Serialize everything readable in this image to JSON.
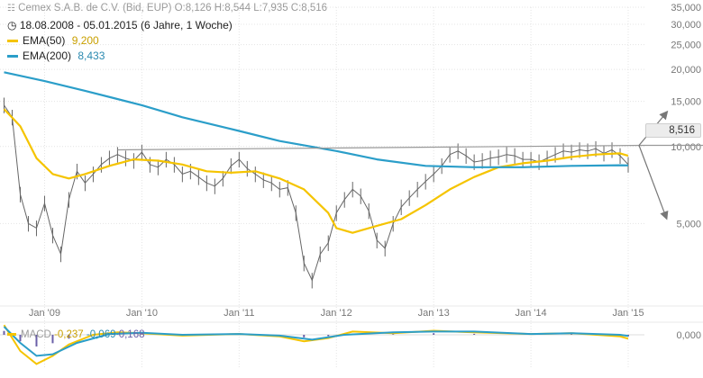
{
  "header": {
    "title": "Cemex S.A.B. de C.V. (Bid, EUP)",
    "quote": {
      "open_label": "O:",
      "open": "8,126",
      "high_label": "H:",
      "high": "8,544",
      "low_label": "L:",
      "low": "7,935",
      "close_label": "C:",
      "close": "8,516"
    },
    "period": "18.08.2008 - 05.01.2015 (6 Jahre, 1 Woche)",
    "ema50_label": "EMA(50)",
    "ema50_value": "9,200",
    "ema200_label": "EMA(200)",
    "ema200_value": "8,433"
  },
  "macd_legend": {
    "label": "MACD",
    "value1": "-0,237",
    "value2": "-0,069",
    "value3": "0,168"
  },
  "price_badge": "8,516",
  "colors": {
    "price": "#666666",
    "ema50": "#f5c400",
    "ema200": "#2b9ec9",
    "trendline": "#999999",
    "arrow": "#777777",
    "grid": "#e4e4e4",
    "macd_hist": "#6a5fa8"
  },
  "icons": {
    "clock": "clock-icon",
    "chart_logo": "chart-logo-icon"
  },
  "chart_data": {
    "type": "line",
    "scale": "log",
    "ylim": [
      2.5,
      35
    ],
    "y_ticks": [
      {
        "value": 35,
        "label": "35,000"
      },
      {
        "value": 30,
        "label": "30,000"
      },
      {
        "value": 25,
        "label": "25,000"
      },
      {
        "value": 20,
        "label": "20,000"
      },
      {
        "value": 15,
        "label": "15,000"
      },
      {
        "value": 10,
        "label": "10,000"
      },
      {
        "value": 5,
        "label": "5,000"
      }
    ],
    "x_ticks": [
      {
        "value": "2009-01",
        "label": "Jan '09"
      },
      {
        "value": "2010-01",
        "label": "Jan '10"
      },
      {
        "value": "2011-01",
        "label": "Jan '11"
      },
      {
        "value": "2012-01",
        "label": "Jan '12"
      },
      {
        "value": "2013-01",
        "label": "Jan '13"
      },
      {
        "value": "2014-01",
        "label": "Jan '14"
      },
      {
        "value": "2015-01",
        "label": "Jan '15"
      }
    ],
    "xlim": [
      "2008-08",
      "2015-03"
    ],
    "grid": true,
    "series": [
      {
        "key": "price",
        "x": [
          "2008-08",
          "2008-09",
          "2008-10",
          "2008-11",
          "2008-12",
          "2009-01",
          "2009-02",
          "2009-03",
          "2009-04",
          "2009-05",
          "2009-06",
          "2009-07",
          "2009-08",
          "2009-09",
          "2009-10",
          "2009-11",
          "2009-12",
          "2010-01",
          "2010-02",
          "2010-03",
          "2010-04",
          "2010-05",
          "2010-06",
          "2010-07",
          "2010-08",
          "2010-09",
          "2010-10",
          "2010-11",
          "2010-12",
          "2011-01",
          "2011-02",
          "2011-03",
          "2011-04",
          "2011-05",
          "2011-06",
          "2011-07",
          "2011-08",
          "2011-09",
          "2011-10",
          "2011-11",
          "2011-12",
          "2012-01",
          "2012-02",
          "2012-03",
          "2012-04",
          "2012-05",
          "2012-06",
          "2012-07",
          "2012-08",
          "2012-09",
          "2012-10",
          "2012-11",
          "2012-12",
          "2013-01",
          "2013-02",
          "2013-03",
          "2013-04",
          "2013-05",
          "2013-06",
          "2013-07",
          "2013-08",
          "2013-09",
          "2013-10",
          "2013-11",
          "2013-12",
          "2014-01",
          "2014-02",
          "2014-03",
          "2014-04",
          "2014-05",
          "2014-06",
          "2014-07",
          "2014-08",
          "2014-09",
          "2014-10",
          "2014-11",
          "2014-12",
          "2015-01"
        ],
        "values": [
          14.5,
          13.0,
          6.5,
          5.0,
          4.8,
          6.0,
          4.5,
          3.8,
          6.2,
          8.0,
          7.2,
          7.8,
          8.5,
          9.0,
          9.3,
          9.0,
          8.8,
          9.5,
          8.5,
          8.3,
          8.9,
          8.5,
          7.8,
          8.0,
          7.6,
          7.2,
          7.0,
          7.5,
          8.4,
          8.9,
          8.2,
          7.8,
          7.4,
          7.2,
          6.8,
          6.9,
          5.5,
          3.5,
          3.0,
          3.8,
          4.2,
          5.5,
          6.2,
          6.8,
          6.4,
          5.6,
          4.3,
          4.0,
          5.0,
          5.8,
          6.3,
          6.8,
          7.3,
          7.8,
          8.4,
          9.3,
          9.6,
          9.2,
          8.7,
          8.8,
          9.0,
          9.1,
          9.3,
          9.2,
          8.9,
          8.9,
          8.7,
          9.0,
          9.3,
          9.6,
          9.5,
          9.7,
          9.6,
          9.8,
          9.4,
          9.7,
          9.2,
          8.5
        ]
      },
      {
        "key": "ema50",
        "name": "EMA(50)",
        "x": [
          "2008-08",
          "2008-10",
          "2008-12",
          "2009-02",
          "2009-04",
          "2009-06",
          "2009-09",
          "2009-12",
          "2010-03",
          "2010-06",
          "2010-09",
          "2010-12",
          "2011-03",
          "2011-06",
          "2011-09",
          "2011-12",
          "2012-01",
          "2012-03",
          "2012-06",
          "2012-09",
          "2012-12",
          "2013-03",
          "2013-06",
          "2013-09",
          "2013-12",
          "2014-03",
          "2014-06",
          "2014-09",
          "2014-12",
          "2015-01"
        ],
        "values": [
          14.0,
          12.0,
          9.0,
          7.8,
          7.5,
          7.8,
          8.4,
          8.9,
          8.8,
          8.5,
          8.0,
          7.9,
          8.0,
          7.5,
          6.8,
          5.5,
          4.8,
          4.6,
          4.9,
          5.2,
          5.9,
          6.8,
          7.6,
          8.3,
          8.6,
          8.8,
          9.1,
          9.3,
          9.4,
          9.2
        ]
      },
      {
        "key": "ema200",
        "name": "EMA(200)",
        "x": [
          "2008-08",
          "2009-01",
          "2009-06",
          "2010-01",
          "2010-06",
          "2011-01",
          "2011-06",
          "2012-01",
          "2012-06",
          "2012-12",
          "2013-06",
          "2013-12",
          "2014-06",
          "2014-12",
          "2015-01"
        ],
        "values": [
          19.5,
          18.0,
          16.5,
          14.5,
          13.0,
          11.5,
          10.5,
          9.6,
          8.9,
          8.4,
          8.3,
          8.3,
          8.4,
          8.45,
          8.43
        ]
      }
    ],
    "trendline": {
      "x": [
        "2009-10",
        "2015-03"
      ],
      "values": [
        9.7,
        10.1
      ]
    },
    "arrows": [
      {
        "direction": "up",
        "from": {
          "x": "2015-01",
          "y": 10.1
        },
        "to": {
          "x": "2015-05",
          "y": 13.5
        }
      },
      {
        "direction": "down",
        "from": {
          "x": "2015-01",
          "y": 10.1
        },
        "to": {
          "x": "2015-05",
          "y": 5.3
        }
      }
    ],
    "macd_panel": {
      "type": "line",
      "y_tick_label": "0,000",
      "series": [
        {
          "key": "macd",
          "x": [
            "2008-08",
            "2008-10",
            "2008-12",
            "2009-02",
            "2009-04",
            "2009-07",
            "2009-10",
            "2010-01",
            "2010-06",
            "2011-01",
            "2011-06",
            "2011-09",
            "2011-12",
            "2012-03",
            "2012-08",
            "2013-01",
            "2013-06",
            "2014-01",
            "2014-06",
            "2014-12",
            "2015-01"
          ],
          "values": [
            0.6,
            -1.0,
            -1.8,
            -1.3,
            -0.6,
            0.0,
            0.15,
            0.1,
            -0.05,
            0.05,
            -0.1,
            -0.4,
            -0.2,
            0.2,
            0.1,
            0.25,
            0.15,
            0.05,
            0.1,
            -0.1,
            -0.24
          ]
        },
        {
          "key": "signal",
          "x": [
            "2008-08",
            "2008-10",
            "2008-12",
            "2009-02",
            "2009-05",
            "2009-09",
            "2010-01",
            "2010-06",
            "2011-01",
            "2011-06",
            "2011-10",
            "2012-02",
            "2012-08",
            "2013-01",
            "2013-06",
            "2014-01",
            "2014-06",
            "2014-12",
            "2015-01"
          ],
          "values": [
            0.5,
            -0.5,
            -1.3,
            -1.2,
            -0.5,
            0.05,
            0.12,
            0.0,
            0.05,
            -0.05,
            -0.3,
            0.0,
            0.15,
            0.2,
            0.2,
            0.05,
            0.1,
            0.0,
            -0.07
          ]
        }
      ]
    }
  }
}
